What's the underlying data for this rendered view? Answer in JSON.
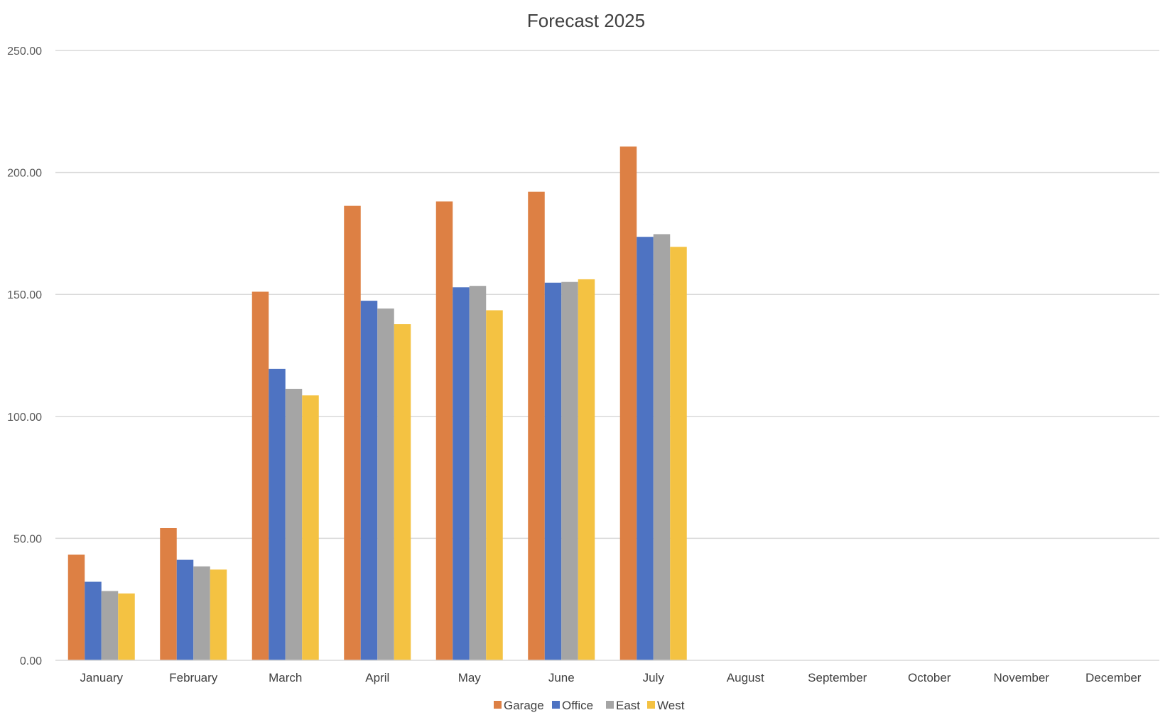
{
  "chart_data": {
    "type": "bar",
    "title": "Forecast 2025",
    "xlabel": "",
    "ylabel": "",
    "ylim": [
      0,
      250
    ],
    "yticks": [
      "0.00",
      "50.00",
      "100.00",
      "150.00",
      "200.00",
      "250.00"
    ],
    "ytick_values": [
      0,
      50,
      100,
      150,
      200,
      250
    ],
    "grid": true,
    "legend_position": "bottom",
    "categories": [
      "January",
      "February",
      "March",
      "April",
      "May",
      "June",
      "July",
      "August",
      "September",
      "October",
      "November",
      "December"
    ],
    "series": [
      {
        "name": "Garage",
        "color": "#DD8044",
        "values": [
          43.3,
          54.2,
          151.1,
          186.3,
          188.1,
          192.1,
          210.6,
          null,
          null,
          null,
          null,
          null
        ]
      },
      {
        "name": "Office",
        "color": "#4E73C2",
        "values": [
          32.2,
          41.2,
          119.5,
          147.4,
          152.9,
          154.8,
          173.6,
          null,
          null,
          null,
          null,
          null
        ]
      },
      {
        "name": "East",
        "color": "#A5A5A5",
        "values": [
          28.4,
          38.5,
          111.3,
          144.2,
          153.5,
          155.1,
          174.7,
          null,
          null,
          null,
          null,
          null
        ]
      },
      {
        "name": "West",
        "color": "#F4C242",
        "values": [
          27.4,
          37.2,
          108.6,
          137.8,
          143.5,
          156.2,
          169.5,
          null,
          null,
          null,
          null,
          null
        ]
      }
    ]
  }
}
